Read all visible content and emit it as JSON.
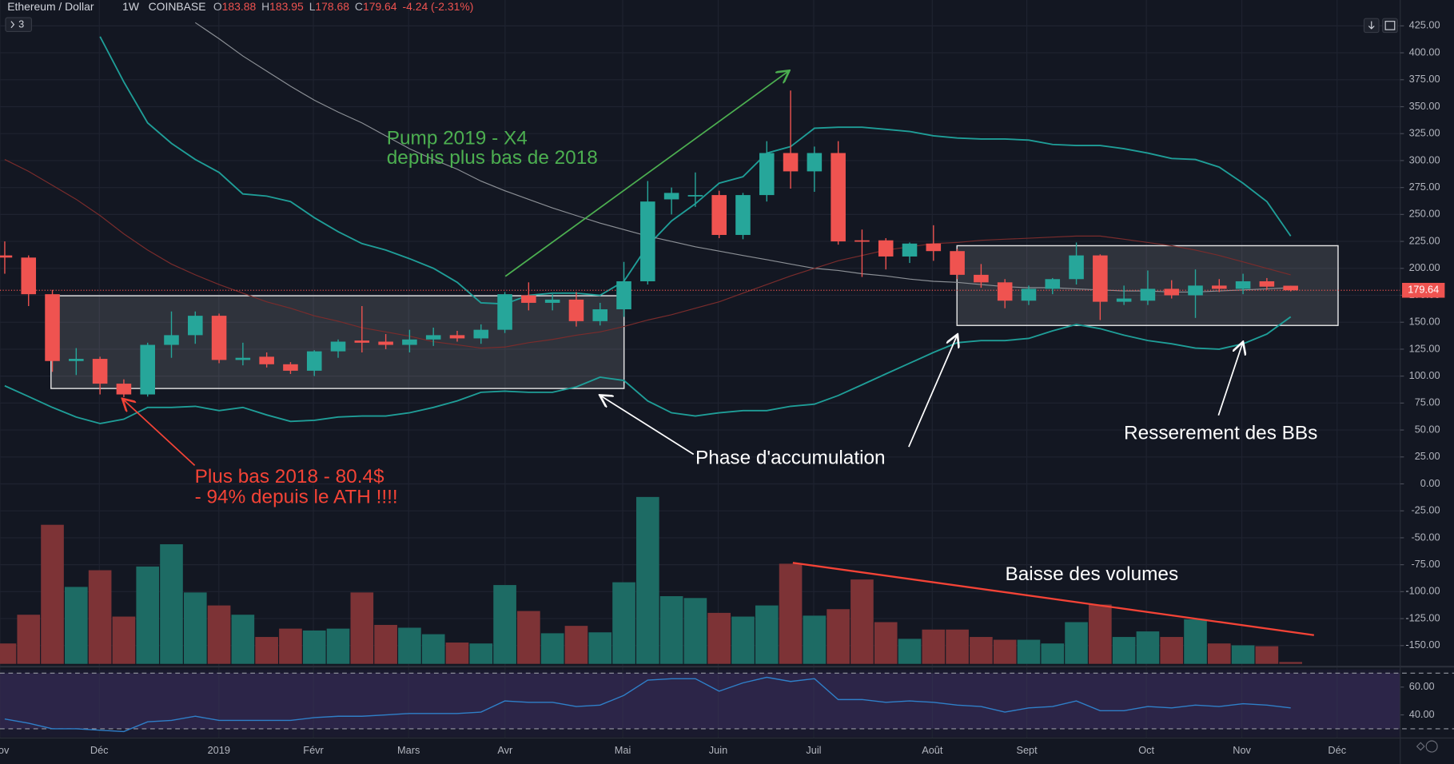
{
  "chart_data": {
    "type": "candlestick",
    "symbol": "Ethereum / Dollar",
    "interval": "1W",
    "exchange": "COINBASE",
    "legend_values": [
      {
        "key": "O",
        "value": "183.88"
      },
      {
        "key": "H",
        "value": "183.95"
      },
      {
        "key": "L",
        "value": "178.68"
      },
      {
        "key": "C",
        "value": "179.64"
      },
      {
        "key": "",
        "value": "-4.24 (-2.31%)"
      }
    ],
    "collapsed_indicators": "3",
    "last_price_label": "179.64",
    "colors": {
      "up": "#26a69a",
      "down": "#ef5350",
      "volume_up": "#1d6b64",
      "volume_down": "#7d3336",
      "bollinger": "#1f9e98",
      "ma_long": "#8c9096",
      "ma_short": "#7a2c2c",
      "rsi": "#2f7fc8"
    },
    "open": [
      212,
      210,
      176,
      114,
      116,
      93,
      83,
      129,
      138,
      156,
      115,
      118,
      111,
      105,
      123,
      133,
      132,
      129,
      134,
      138,
      135,
      143,
      175,
      168,
      171,
      151,
      162,
      188,
      264,
      267,
      268,
      231,
      268,
      307,
      290,
      307,
      226,
      226,
      211,
      223,
      216,
      194,
      187,
      170,
      181,
      190,
      212,
      169,
      170,
      181,
      175,
      184,
      181,
      188,
      183.88
    ],
    "high": [
      225,
      212,
      180,
      126,
      118,
      97,
      131,
      160,
      160,
      158,
      131,
      122,
      113,
      124,
      134,
      165,
      139,
      143,
      145,
      142,
      148,
      178,
      187,
      176,
      178,
      168,
      206,
      281,
      275,
      289,
      272,
      270,
      318,
      365,
      313,
      318,
      236,
      228,
      224,
      240,
      218,
      204,
      190,
      184,
      191,
      224,
      213,
      184,
      198,
      189,
      199,
      190,
      195,
      191,
      183.95
    ],
    "low": [
      195,
      165,
      104,
      101,
      83,
      80.4,
      81,
      117,
      130,
      112,
      110,
      108,
      102,
      100,
      117,
      122,
      125,
      122,
      128,
      132,
      130,
      140,
      161,
      161,
      146,
      147,
      155,
      185,
      250,
      257,
      228,
      227,
      262,
      274,
      271,
      222,
      192,
      199,
      205,
      207,
      190,
      182,
      163,
      166,
      176,
      185,
      152,
      166,
      166,
      172,
      154,
      178,
      176,
      180,
      178.68
    ],
    "close": [
      210,
      176,
      114,
      116,
      93,
      83,
      129,
      138,
      156,
      115,
      117,
      111,
      105,
      123,
      132,
      131,
      129,
      134,
      138,
      135,
      143,
      176,
      168,
      171,
      151,
      162,
      188,
      262,
      270,
      268,
      231,
      268,
      307,
      290,
      307,
      225,
      225,
      211,
      223,
      216,
      194,
      187,
      170,
      181,
      190,
      212,
      169,
      172,
      181,
      175,
      184,
      181,
      188,
      183,
      179.64
    ],
    "volume": [
      22,
      53,
      150,
      83,
      101,
      51,
      105,
      129,
      77,
      63,
      53,
      29,
      38,
      36,
      38,
      77,
      42,
      39,
      32,
      23,
      22,
      85,
      57,
      33,
      41,
      34,
      88,
      180,
      73,
      71,
      55,
      51,
      63,
      108,
      52,
      59,
      91,
      45,
      27,
      37,
      37,
      29,
      26,
      26,
      22,
      45,
      64,
      29,
      35,
      29,
      48,
      22,
      20,
      19,
      2
    ],
    "bb_upper": [
      null,
      null,
      null,
      null,
      415,
      373,
      335,
      316,
      301,
      289,
      269,
      267,
      262,
      247,
      234,
      223,
      217,
      209,
      200,
      187,
      168,
      167,
      175,
      177,
      177,
      175,
      188,
      221,
      244,
      260,
      279,
      285,
      307,
      313,
      330,
      331,
      331,
      329,
      327,
      323,
      321,
      320,
      320,
      319,
      315,
      314,
      314,
      311,
      307,
      302,
      301,
      294,
      279,
      262,
      230
    ],
    "bb_lower": [
      91,
      81,
      71,
      62,
      56,
      60,
      71,
      71,
      72,
      68,
      71,
      64,
      58,
      59,
      62,
      63,
      63,
      66,
      71,
      77,
      85,
      86,
      85,
      85,
      90,
      99,
      96,
      77,
      66,
      63,
      66,
      68,
      68,
      72,
      74,
      82,
      92,
      102,
      112,
      122,
      131,
      133,
      133,
      135,
      142,
      148,
      144,
      138,
      133,
      130,
      126,
      125,
      130,
      139,
      155
    ],
    "ma_long": [
      null,
      null,
      null,
      null,
      null,
      null,
      null,
      null,
      428,
      413,
      397,
      383,
      369,
      356,
      345,
      335,
      323,
      311,
      301,
      292,
      281,
      272,
      264,
      256,
      249,
      242,
      236,
      230,
      225,
      220,
      216,
      212,
      208,
      204,
      200,
      198,
      195,
      193,
      190,
      188,
      187,
      185,
      183,
      182,
      182,
      181,
      180,
      179,
      179,
      178,
      178,
      179,
      180,
      181,
      182
    ],
    "ma_short": [
      301,
      290,
      277,
      264,
      249,
      232,
      217,
      204,
      194,
      185,
      177,
      169,
      163,
      156,
      151,
      145,
      141,
      137,
      132,
      129,
      126,
      127,
      131,
      134,
      138,
      141,
      146,
      152,
      157,
      163,
      169,
      177,
      185,
      193,
      200,
      207,
      212,
      217,
      220,
      223,
      224,
      226,
      227,
      228,
      229,
      230,
      230,
      227,
      224,
      221,
      217,
      212,
      206,
      200,
      194
    ],
    "rsi": [
      37,
      34,
      30,
      30,
      29,
      28,
      35,
      36,
      39,
      36,
      36,
      36,
      36,
      38,
      39,
      39,
      40,
      41,
      41,
      41,
      42,
      50,
      49,
      49,
      46,
      47,
      54,
      65,
      66,
      66,
      57,
      63,
      67,
      64,
      66,
      51,
      51,
      49,
      50,
      49,
      47,
      46,
      42,
      45,
      46,
      50,
      43,
      43,
      46,
      45,
      47,
      46,
      48,
      47,
      45
    ],
    "ylim": [
      -167,
      449
    ],
    "yticks": [
      {
        "value": 425,
        "label": "425.00"
      },
      {
        "value": 400,
        "label": "400.00"
      },
      {
        "value": 375,
        "label": "375.00"
      },
      {
        "value": 350,
        "label": "350.00"
      },
      {
        "value": 325,
        "label": "325.00"
      },
      {
        "value": 300,
        "label": "300.00"
      },
      {
        "value": 275,
        "label": "275.00"
      },
      {
        "value": 250,
        "label": "250.00"
      },
      {
        "value": 225,
        "label": "225.00"
      },
      {
        "value": 200,
        "label": "200.00"
      },
      {
        "value": 175,
        "label": "175.00"
      },
      {
        "value": 150,
        "label": "150.00"
      },
      {
        "value": 125,
        "label": "125.00"
      },
      {
        "value": 100,
        "label": "100.00"
      },
      {
        "value": 75,
        "label": "75.00"
      },
      {
        "value": 50,
        "label": "50.00"
      },
      {
        "value": 25,
        "label": "25.00"
      },
      {
        "value": 0,
        "label": "0.00"
      },
      {
        "value": -25,
        "label": "-25.00"
      },
      {
        "value": -50,
        "label": "-50.00"
      },
      {
        "value": -75,
        "label": "-75.00"
      },
      {
        "value": -100,
        "label": "-100.00"
      },
      {
        "value": -125,
        "label": "-125.00"
      },
      {
        "value": -150,
        "label": "-150.00"
      }
    ],
    "rsi_ylim": [
      24,
      72.7
    ],
    "rsi_yticks": [
      {
        "value": 60,
        "label": "60.00"
      },
      {
        "value": 40,
        "label": "40.00"
      }
    ],
    "rsi_bands": [
      70,
      30
    ],
    "xlim": [
      -0.2,
      58.6
    ],
    "xticks": [
      {
        "value": -0.2,
        "label": "Nov"
      },
      {
        "value": 3.97,
        "label": "Déc"
      },
      {
        "value": 8.99,
        "label": "2019"
      },
      {
        "value": 12.96,
        "label": "Févr"
      },
      {
        "value": 16.96,
        "label": "Mars"
      },
      {
        "value": 21.01,
        "label": "Avr"
      },
      {
        "value": 25.95,
        "label": "Mai"
      },
      {
        "value": 29.96,
        "label": "Juin"
      },
      {
        "value": 33.97,
        "label": "Juil"
      },
      {
        "value": 38.95,
        "label": "Août"
      },
      {
        "value": 42.92,
        "label": "Sept"
      },
      {
        "value": 47.94,
        "label": "Oct"
      },
      {
        "value": 51.95,
        "label": "Nov"
      },
      {
        "value": 55.95,
        "label": "Déc"
      }
    ],
    "grid": true,
    "annotations": {
      "pump": [
        "Pump 2019 - X4",
        "depuis plus bas de 2018"
      ],
      "low": [
        "Plus bas 2018 - 80.4$",
        "- 94% depuis le ATH !!!!"
      ],
      "accumulation": "Phase d'accumulation",
      "bb_squeeze": "Resserement des BBs",
      "volume_drop": "Baisse des volumes"
    }
  }
}
